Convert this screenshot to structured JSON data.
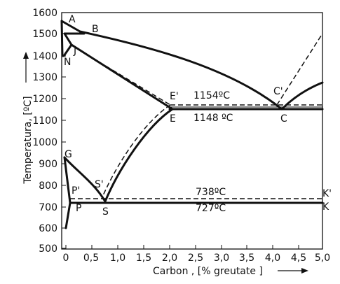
{
  "axes": {
    "xlabel": "Carbon , [% greutate ]",
    "ylabel": "Temperatura, [ºC]",
    "x_ticks": [
      "0",
      "0,5",
      "1,0",
      "1,5",
      "2,0",
      "2,5",
      "3,0",
      "3,5",
      "4,0",
      "4,5",
      "5,0"
    ],
    "y_ticks": [
      "500",
      "600",
      "700",
      "800",
      "900",
      "1000",
      "1100",
      "1200",
      "1300",
      "1400",
      "1500",
      "1600"
    ],
    "xlim": [
      0,
      5
    ],
    "ylim": [
      500,
      1600
    ]
  },
  "points": {
    "A": "A",
    "B": "B",
    "J": "J",
    "N": "N",
    "E_prime": "E'",
    "E": "E",
    "C_prime": "C'",
    "C": "C",
    "G": "G",
    "S_prime": "S'",
    "S": "S",
    "P_prime": "P'",
    "P": "P",
    "K_prime": "K'",
    "K": "K"
  },
  "temperatures": {
    "eutectic_stable": "1154ºC",
    "eutectic_metastable": "1148 ºC",
    "eutectoid_stable": "738ºC",
    "eutectoid_metastable": "727ºC"
  },
  "colors": {
    "line": "#111111",
    "background": "#ffffff"
  }
}
